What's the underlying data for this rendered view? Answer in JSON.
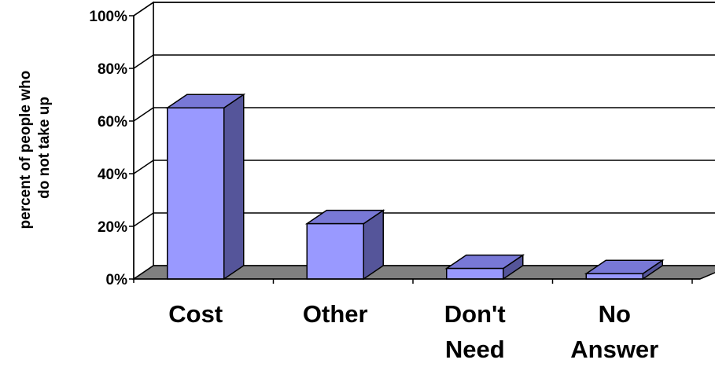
{
  "chart_data": {
    "type": "bar",
    "categories": [
      [
        "Cost"
      ],
      [
        "Other"
      ],
      [
        "Don't",
        "Need"
      ],
      [
        "No",
        "Answer"
      ]
    ],
    "values": [
      65,
      21,
      4,
      2
    ],
    "yticks": [
      "0%",
      "20%",
      "40%",
      "60%",
      "80%",
      "100%"
    ],
    "ylabel": [
      "percent of people who",
      "do not take up"
    ],
    "ylim": [
      0,
      100
    ],
    "grid": true,
    "colors": {
      "bar_front": "#9999ff",
      "bar_top": "#7878d6",
      "bar_side": "#55559a",
      "floor": "#808080",
      "outline": "#000000"
    }
  }
}
